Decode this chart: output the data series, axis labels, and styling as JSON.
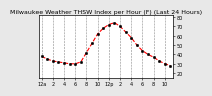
{
  "title": "Milwaukee Weather THSW Index per Hour (F) (Last 24 Hours)",
  "background_color": "#e8e8e8",
  "plot_bg_color": "#ffffff",
  "line_color": "#ff0000",
  "marker_color": "#000000",
  "grid_color": "#888888",
  "ylim": [
    15,
    82
  ],
  "yticks": [
    20,
    30,
    40,
    50,
    60,
    70,
    80
  ],
  "hours": [
    0,
    1,
    2,
    3,
    4,
    5,
    6,
    7,
    8,
    9,
    10,
    11,
    12,
    13,
    14,
    15,
    16,
    17,
    18,
    19,
    20,
    21,
    22,
    23
  ],
  "values": [
    38,
    35,
    33,
    32,
    31,
    30,
    30,
    32,
    42,
    52,
    62,
    68,
    72,
    74,
    70,
    64,
    58,
    50,
    44,
    40,
    37,
    33,
    30,
    28
  ],
  "xlabel_ticks": [
    0,
    2,
    4,
    6,
    8,
    10,
    12,
    14,
    16,
    18,
    20,
    22
  ],
  "xlabel_labels": [
    "12a",
    "2",
    "4",
    "6",
    "8",
    "10",
    "12p",
    "2",
    "4",
    "6",
    "8",
    "10"
  ],
  "title_fontsize": 4.5,
  "tick_fontsize": 3.5,
  "line_width": 0.8,
  "marker_size": 1.8
}
